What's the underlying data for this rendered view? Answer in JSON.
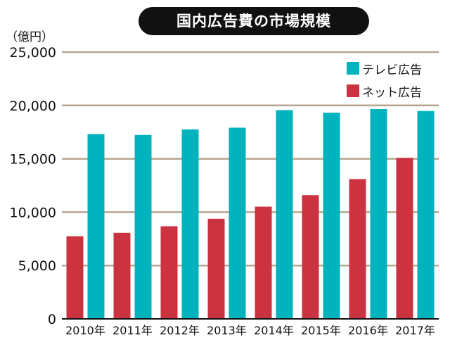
{
  "chart_data": {
    "type": "bar",
    "title": "国内広告費の市場規模",
    "unit_label": "（億円）",
    "categories": [
      "2010年",
      "2011年",
      "2012年",
      "2013年",
      "2014年",
      "2015年",
      "2016年",
      "2017年"
    ],
    "series": [
      {
        "name": "ネット広告",
        "color": "#cc3340",
        "values": [
          7747,
          8062,
          8680,
          9381,
          10519,
          11594,
          13100,
          15094
        ]
      },
      {
        "name": "テレビ広告",
        "color": "#00b3bc",
        "values": [
          17321,
          17237,
          17757,
          17913,
          19564,
          19323,
          19657,
          19478
        ]
      }
    ],
    "legend_order": [
      "テレビ広告",
      "ネット広告"
    ],
    "ylim": [
      0,
      25000
    ],
    "yticks": [
      0,
      5000,
      10000,
      15000,
      20000,
      25000
    ],
    "ytick_labels": [
      "0",
      "5,000",
      "10,000",
      "15,000",
      "20,000",
      "25,000"
    ],
    "xlabel": "",
    "ylabel": "",
    "legend_position": "top-right",
    "grid": true,
    "grid_color": "#b8a590"
  }
}
